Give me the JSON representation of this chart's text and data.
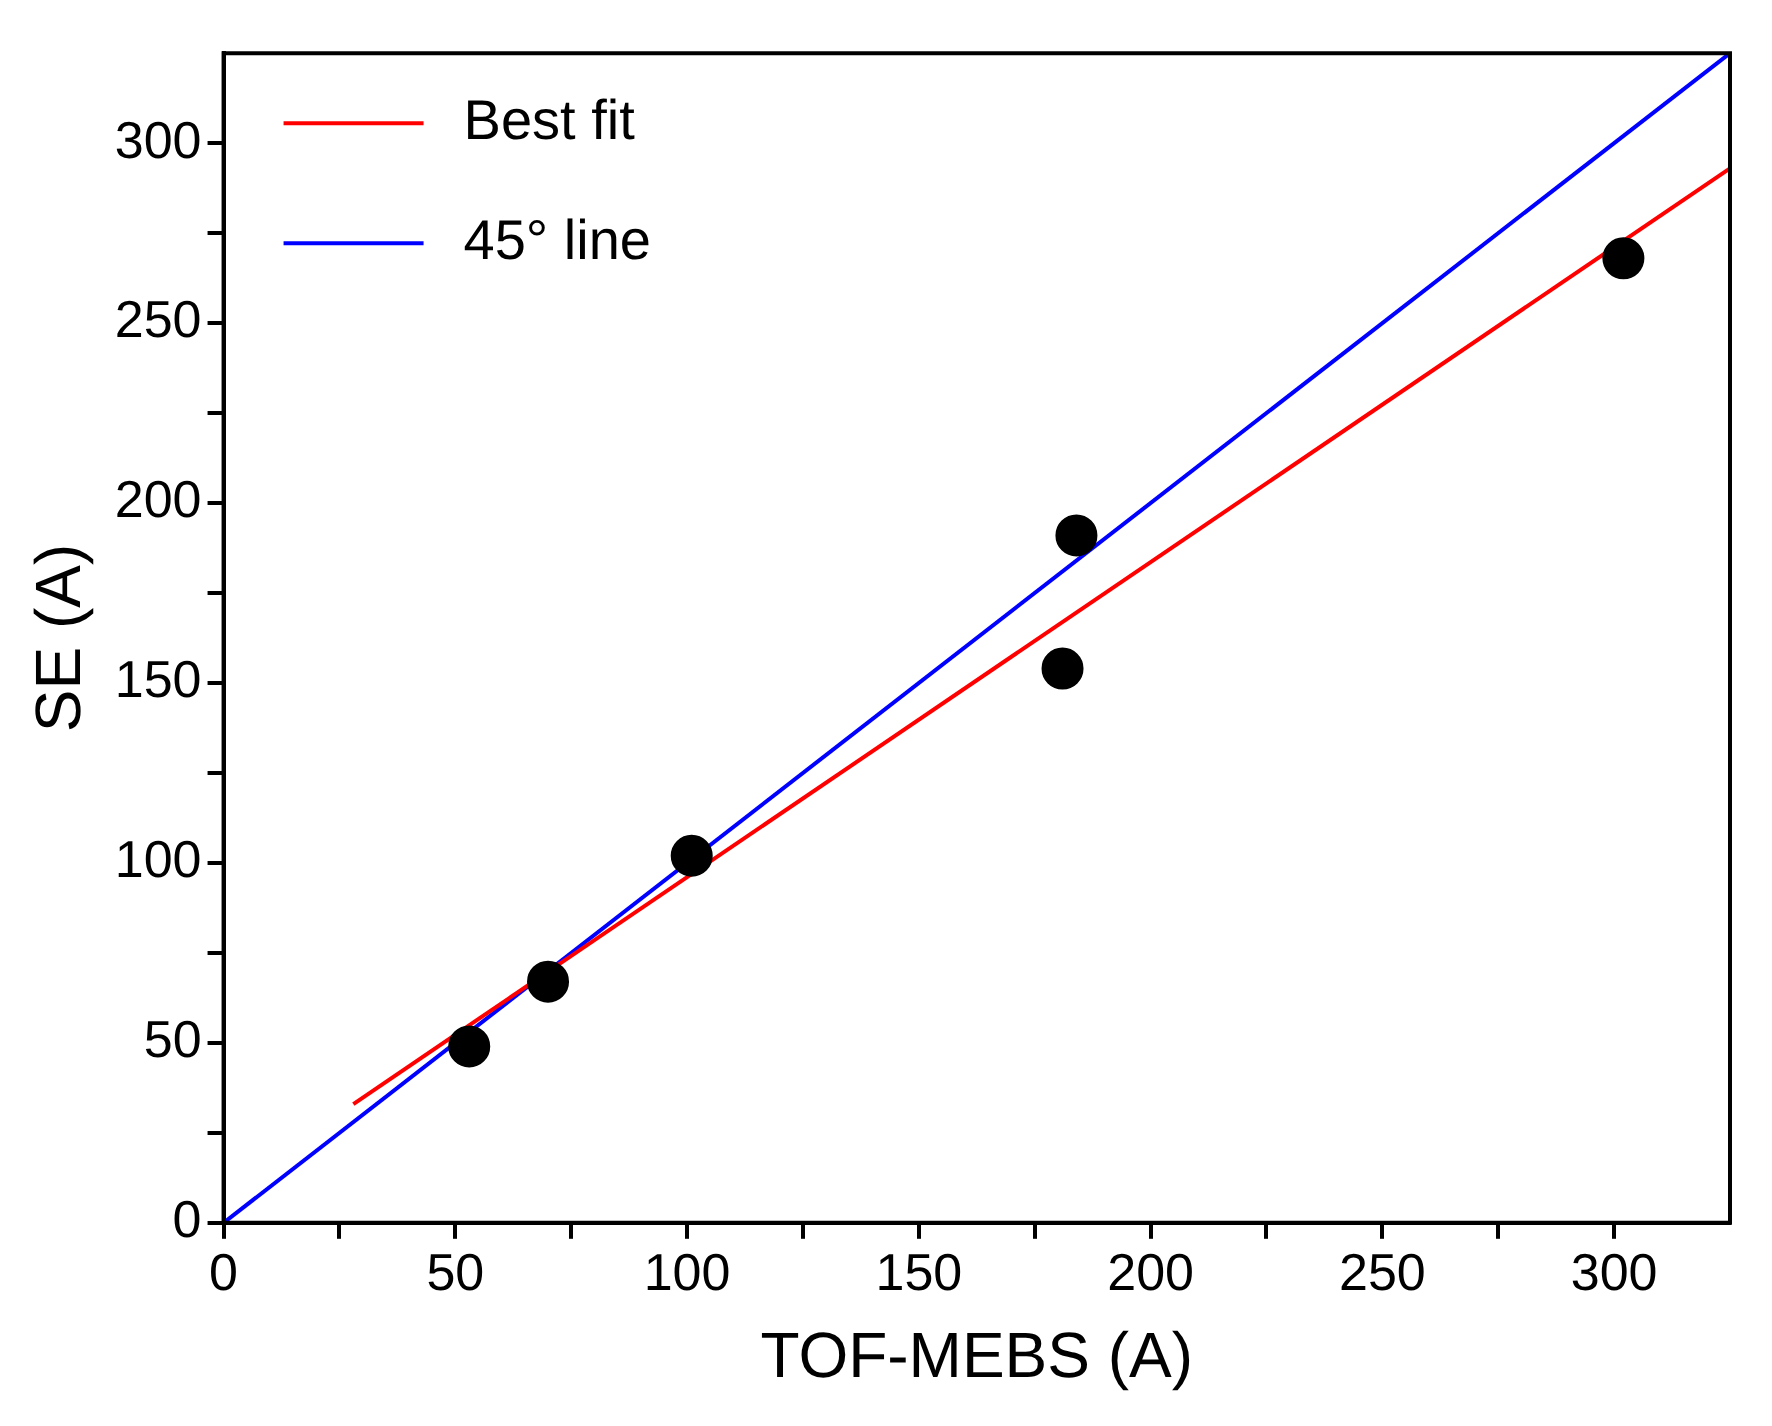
{
  "chart_data": {
    "type": "scatter",
    "xlabel": "TOF-MEBS (A)",
    "ylabel": "SE (A)",
    "legend": "top left",
    "marker": "circle",
    "xlim": [
      0,
      325
    ],
    "ylim": [
      0,
      325
    ],
    "xticks": [
      0,
      {
        "value": 25,
        "label": null
      },
      50,
      {
        "value": 75,
        "label": null
      },
      100,
      {
        "value": 125,
        "label": null
      },
      150,
      {
        "value": 175,
        "label": null
      },
      200,
      {
        "value": 225,
        "label": null
      },
      250,
      {
        "value": 275,
        "label": null
      },
      300
    ],
    "yticks": [
      0,
      {
        "value": 25,
        "label": null
      },
      50,
      {
        "value": 75,
        "label": null
      },
      100,
      {
        "value": 125,
        "label": null
      },
      150,
      {
        "value": 175,
        "label": null
      },
      200,
      {
        "value": 225,
        "label": null
      },
      250,
      {
        "value": 275,
        "label": null
      },
      300
    ],
    "series": [
      {
        "color": "#000000",
        "x": [
          53,
          70,
          101,
          181,
          184,
          302
        ],
        "values": [
          49,
          67,
          102,
          154,
          191,
          268
        ]
      },
      {
        "type": "line",
        "name": "Best fit",
        "color": "#ff0000",
        "marker": "none",
        "x": [
          28,
          325
        ],
        "values": [
          33,
          293
        ]
      },
      {
        "type": "line",
        "name": "45° line",
        "color": "#0000ff",
        "marker": "none",
        "x": [
          0,
          325
        ],
        "values": [
          0,
          325
        ]
      }
    ]
  }
}
